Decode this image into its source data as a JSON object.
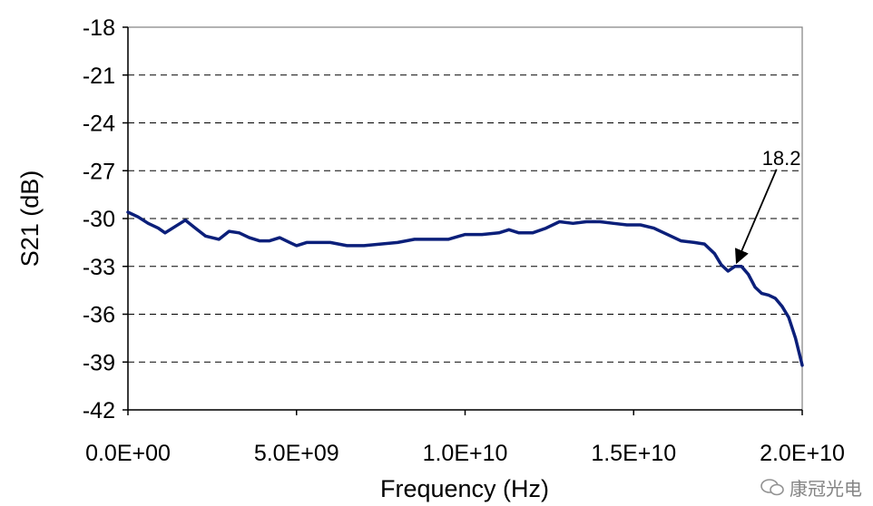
{
  "chart_data": {
    "type": "line",
    "xlabel": "Frequency (Hz)",
    "ylabel": "S21 (dB)",
    "xlim": [
      0,
      20000000000
    ],
    "ylim": [
      -42,
      -18
    ],
    "x_ticks": [
      0,
      5000000000,
      10000000000,
      15000000000,
      20000000000
    ],
    "x_tick_labels": [
      "0.0E+00",
      "5.0E+09",
      "1.0E+10",
      "1.5E+10",
      "2.0E+10"
    ],
    "y_ticks": [
      -42,
      -39,
      -36,
      -33,
      -30,
      -27,
      -24,
      -21,
      -18
    ],
    "y_tick_labels": [
      "-42",
      "-39",
      "-36",
      "-33",
      "-30",
      "-27",
      "-24",
      "-21",
      "-18"
    ],
    "grid": "horizontal dashed",
    "series_color": "#0b1f7a",
    "series": [
      {
        "x": [
          0,
          300000000,
          600000000,
          900000000,
          1100000000,
          1400000000,
          1700000000,
          2000000000,
          2300000000,
          2700000000,
          3000000000,
          3300000000,
          3600000000,
          3900000000,
          4200000000,
          4500000000,
          4800000000,
          5000000000,
          5300000000,
          5600000000,
          6000000000,
          6500000000,
          7000000000,
          7500000000,
          8000000000,
          8500000000,
          9000000000,
          9500000000,
          10000000000,
          10500000000,
          11000000000,
          11300000000,
          11600000000,
          12000000000,
          12400000000,
          12800000000,
          13200000000,
          13600000000,
          14000000000,
          14400000000,
          14800000000,
          15200000000,
          15600000000,
          16000000000,
          16400000000,
          16800000000,
          17100000000,
          17400000000,
          17600000000,
          17800000000,
          18000000000,
          18200000000,
          18400000000,
          18600000000,
          18800000000,
          19000000000,
          19200000000,
          19400000000,
          19600000000,
          19800000000,
          20000000000
        ],
        "y": [
          -29.6,
          -29.9,
          -30.3,
          -30.6,
          -30.9,
          -30.5,
          -30.1,
          -30.6,
          -31.1,
          -31.3,
          -30.8,
          -30.9,
          -31.2,
          -31.4,
          -31.4,
          -31.2,
          -31.5,
          -31.7,
          -31.5,
          -31.5,
          -31.5,
          -31.7,
          -31.7,
          -31.6,
          -31.5,
          -31.3,
          -31.3,
          -31.3,
          -31.0,
          -31.0,
          -30.9,
          -30.7,
          -30.9,
          -30.9,
          -30.6,
          -30.2,
          -30.3,
          -30.2,
          -30.2,
          -30.3,
          -30.4,
          -30.4,
          -30.6,
          -31.0,
          -31.4,
          -31.5,
          -31.6,
          -32.2,
          -32.9,
          -33.3,
          -33.0,
          -33.0,
          -33.5,
          -34.3,
          -34.7,
          -34.8,
          -35.0,
          -35.5,
          -36.2,
          -37.5,
          -39.2
        ]
      }
    ],
    "annotations": [
      {
        "text": "18.2",
        "x": 18000000000,
        "y": -33.0
      }
    ]
  },
  "watermark": {
    "text": "康冠光电",
    "icon": "chat-bubble-icon"
  }
}
